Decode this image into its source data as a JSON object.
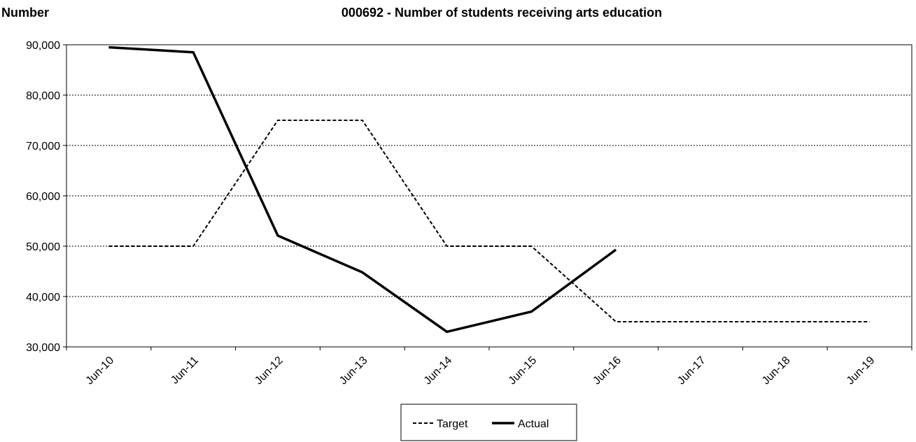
{
  "chart_data": {
    "type": "line",
    "title": "000692 - Number of students receiving arts education",
    "ylabel": "Number",
    "xlabel": "",
    "categories": [
      "Jun-10",
      "Jun-11",
      "Jun-12",
      "Jun-13",
      "Jun-14",
      "Jun-15",
      "Jun-16",
      "Jun-17",
      "Jun-18",
      "Jun-19"
    ],
    "ylim": [
      30000,
      90000
    ],
    "yticks": [
      30000,
      40000,
      50000,
      60000,
      70000,
      80000,
      90000
    ],
    "ytick_labels": [
      "30,000",
      "40,000",
      "50,000",
      "60,000",
      "70,000",
      "80,000",
      "90,000"
    ],
    "grid": true,
    "legend_position": "bottom-center",
    "series": [
      {
        "name": "Target",
        "style": "dashed",
        "color": "#000000",
        "values": [
          50000,
          50000,
          75000,
          75000,
          50000,
          50000,
          35000,
          35000,
          35000,
          35000
        ]
      },
      {
        "name": "Actual",
        "style": "solid",
        "color": "#000000",
        "values": [
          89500,
          88500,
          52100,
          44800,
          33000,
          37000,
          49300,
          null,
          null,
          null
        ]
      }
    ]
  }
}
